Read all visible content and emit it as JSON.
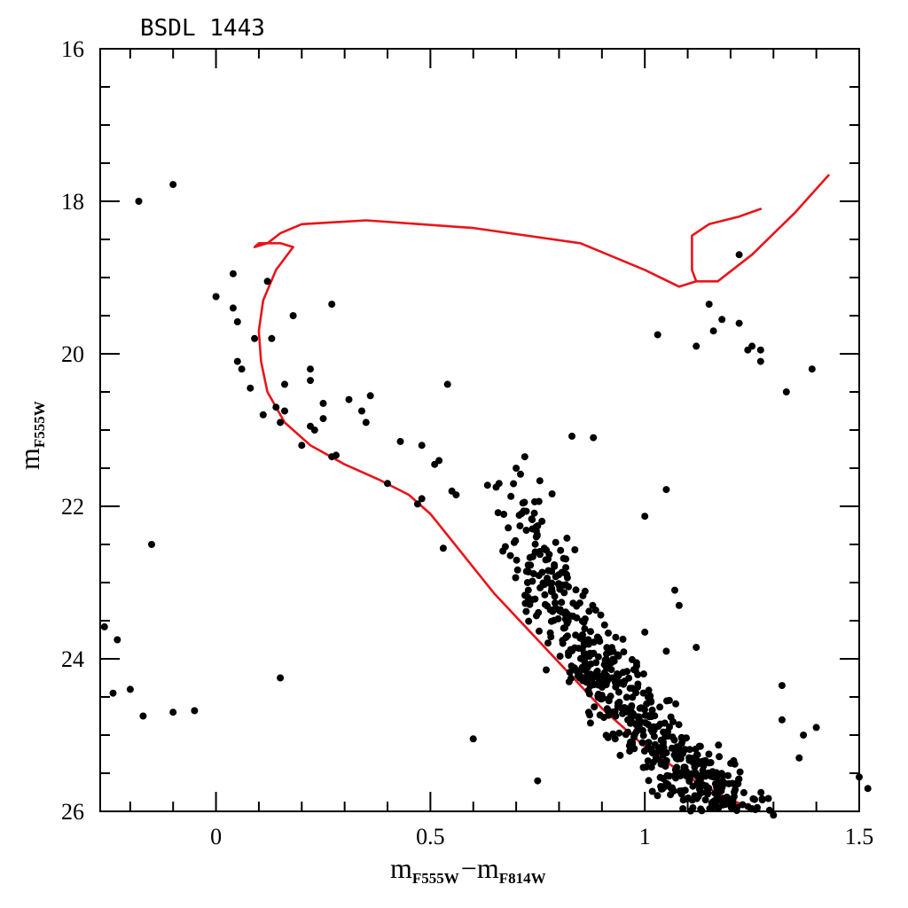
{
  "chart_data": {
    "type": "scatter",
    "title": "BSDL 1443",
    "xlabel": {
      "main": "m",
      "sub1": "F555W",
      "minus": "−",
      "main2": "m",
      "sub2": "F814W"
    },
    "ylabel": {
      "main": "m",
      "sub": "F555W"
    },
    "xlim": [
      -0.27,
      1.5
    ],
    "ylim": [
      26,
      16
    ],
    "y_inverted": true,
    "x_ticks": [
      {
        "value": 0,
        "label": "0"
      },
      {
        "value": 0.5,
        "label": "0.5"
      },
      {
        "value": 1,
        "label": "1"
      },
      {
        "value": 1.5,
        "label": "1.5"
      }
    ],
    "y_ticks": [
      {
        "value": 16,
        "label": "16"
      },
      {
        "value": 18,
        "label": "18"
      },
      {
        "value": 20,
        "label": "20"
      },
      {
        "value": 22,
        "label": "22"
      },
      {
        "value": 24,
        "label": "24"
      },
      {
        "value": 26,
        "label": "26"
      }
    ],
    "grid": false,
    "colors": {
      "points": "#000000",
      "isochrone": "#e8141b"
    },
    "isochrone": [
      [
        1.43,
        17.65
      ],
      [
        1.35,
        18.15
      ],
      [
        1.25,
        18.7
      ],
      [
        1.17,
        19.05
      ],
      [
        1.12,
        19.05
      ],
      [
        1.11,
        18.9
      ],
      [
        1.11,
        18.45
      ],
      [
        1.15,
        18.3
      ],
      [
        1.22,
        18.2
      ],
      [
        1.27,
        18.1
      ],
      [
        1.22,
        18.2
      ],
      [
        1.15,
        18.3
      ],
      [
        1.11,
        18.45
      ],
      [
        1.11,
        18.9
      ],
      [
        1.12,
        19.05
      ],
      [
        1.08,
        19.12
      ],
      [
        1.0,
        18.9
      ],
      [
        0.85,
        18.55
      ],
      [
        0.6,
        18.35
      ],
      [
        0.35,
        18.25
      ],
      [
        0.2,
        18.3
      ],
      [
        0.15,
        18.42
      ],
      [
        0.12,
        18.55
      ],
      [
        0.09,
        18.6
      ],
      [
        0.1,
        18.55
      ],
      [
        0.15,
        18.55
      ],
      [
        0.18,
        18.6
      ],
      [
        0.14,
        18.9
      ],
      [
        0.11,
        19.3
      ],
      [
        0.1,
        19.7
      ],
      [
        0.105,
        20.1
      ],
      [
        0.12,
        20.5
      ],
      [
        0.16,
        20.9
      ],
      [
        0.22,
        21.2
      ],
      [
        0.3,
        21.45
      ],
      [
        0.38,
        21.65
      ],
      [
        0.45,
        21.85
      ],
      [
        0.5,
        22.1
      ],
      [
        0.55,
        22.45
      ],
      [
        0.6,
        22.8
      ],
      [
        0.65,
        23.15
      ],
      [
        0.7,
        23.45
      ],
      [
        0.75,
        23.75
      ],
      [
        0.8,
        24.05
      ],
      [
        0.85,
        24.35
      ],
      [
        0.9,
        24.65
      ],
      [
        0.95,
        24.9
      ],
      [
        1.0,
        25.15
      ],
      [
        1.05,
        25.35
      ],
      [
        1.1,
        25.55
      ],
      [
        1.15,
        25.7
      ],
      [
        1.2,
        25.85
      ],
      [
        1.27,
        26.0
      ]
    ],
    "points": [
      [
        -0.1,
        17.78
      ],
      [
        -0.18,
        18.0
      ],
      [
        -0.15,
        22.5
      ],
      [
        -0.26,
        23.58
      ],
      [
        -0.23,
        23.75
      ],
      [
        -0.24,
        24.45
      ],
      [
        -0.2,
        24.4
      ],
      [
        -0.17,
        24.75
      ],
      [
        -0.1,
        24.7
      ],
      [
        -0.05,
        24.68
      ],
      [
        0.15,
        24.25
      ],
      [
        0.6,
        25.05
      ],
      [
        0.75,
        25.6
      ],
      [
        1.3,
        26.05
      ],
      [
        0.0,
        19.25
      ],
      [
        0.04,
        18.95
      ],
      [
        0.04,
        19.4
      ],
      [
        0.05,
        19.58
      ],
      [
        0.12,
        19.05
      ],
      [
        0.09,
        19.8
      ],
      [
        0.13,
        19.8
      ],
      [
        0.18,
        19.5
      ],
      [
        0.27,
        19.35
      ],
      [
        0.05,
        20.1
      ],
      [
        0.06,
        20.2
      ],
      [
        0.08,
        20.45
      ],
      [
        0.11,
        20.8
      ],
      [
        0.14,
        20.7
      ],
      [
        0.16,
        20.4
      ],
      [
        0.16,
        20.75
      ],
      [
        0.15,
        20.9
      ],
      [
        0.2,
        21.2
      ],
      [
        0.22,
        20.2
      ],
      [
        0.22,
        20.35
      ],
      [
        0.22,
        20.95
      ],
      [
        0.23,
        21.0
      ],
      [
        0.25,
        20.65
      ],
      [
        0.25,
        20.85
      ],
      [
        0.27,
        21.35
      ],
      [
        0.28,
        21.33
      ],
      [
        0.31,
        20.6
      ],
      [
        0.34,
        20.75
      ],
      [
        0.35,
        20.9
      ],
      [
        0.36,
        20.55
      ],
      [
        0.4,
        21.7
      ],
      [
        0.43,
        21.15
      ],
      [
        0.47,
        21.97
      ],
      [
        0.48,
        21.2
      ],
      [
        0.48,
        21.9
      ],
      [
        0.51,
        21.45
      ],
      [
        0.52,
        21.4
      ],
      [
        0.53,
        22.55
      ],
      [
        0.54,
        20.4
      ],
      [
        0.55,
        21.8
      ],
      [
        0.56,
        21.85
      ],
      [
        1.03,
        19.75
      ],
      [
        1.12,
        19.9
      ],
      [
        1.15,
        19.35
      ],
      [
        1.16,
        19.7
      ],
      [
        1.18,
        19.55
      ],
      [
        1.22,
        19.6
      ],
      [
        1.24,
        19.95
      ],
      [
        1.25,
        19.9
      ],
      [
        1.27,
        19.95
      ],
      [
        1.27,
        20.1
      ],
      [
        1.33,
        20.5
      ],
      [
        1.39,
        20.2
      ],
      [
        1.22,
        18.7
      ],
      [
        1.05,
        21.78
      ],
      [
        1.0,
        22.13
      ],
      [
        1.08,
        23.3
      ],
      [
        1.07,
        23.1
      ],
      [
        1.0,
        23.65
      ],
      [
        1.05,
        23.9
      ],
      [
        1.12,
        23.85
      ],
      [
        1.32,
        24.35
      ],
      [
        1.32,
        24.8
      ],
      [
        1.36,
        25.3
      ],
      [
        1.4,
        24.9
      ],
      [
        1.37,
        25.0
      ],
      [
        1.5,
        25.55
      ],
      [
        1.52,
        25.7
      ],
      [
        0.88,
        21.1
      ],
      [
        0.83,
        21.08
      ],
      [
        0.66,
        21.7
      ],
      [
        0.72,
        21.35
      ],
      [
        0.7,
        21.5
      ]
    ],
    "main_sequence_cloud": {
      "seed": 1443,
      "count": 620,
      "color_at_mag": [
        [
          22.0,
          0.72
        ],
        [
          23.0,
          0.78
        ],
        [
          24.0,
          0.88
        ],
        [
          25.0,
          1.02
        ],
        [
          26.0,
          1.2
        ]
      ],
      "color_spread": 0.09,
      "mag_range": [
        21.5,
        26.0
      ]
    }
  }
}
